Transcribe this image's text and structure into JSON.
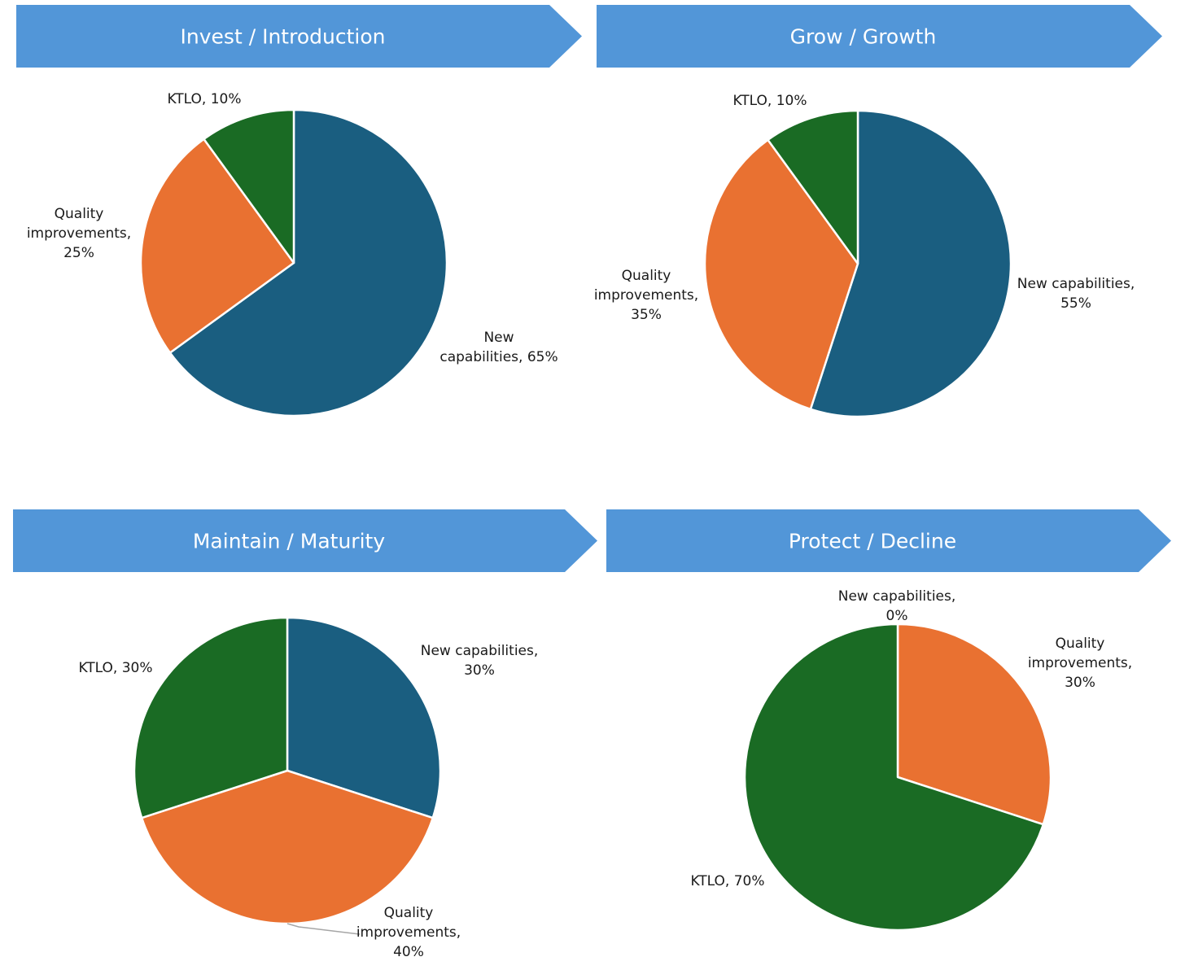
{
  "colors": {
    "banner": "#5296d8",
    "banner_text": "#ffffff",
    "new_capabilities": "#1a5e80",
    "quality_improvements": "#e97131",
    "ktlo": "#1a6b24",
    "slice_border": "#ffffff",
    "label_text": "#1a1a1a",
    "leader_line": "#a6a6a6"
  },
  "chart_data": [
    {
      "type": "pie",
      "title": "Invest / Introduction",
      "categories": [
        "New capabilities",
        "Quality improvements",
        "KTLO"
      ],
      "values": [
        65,
        25,
        10
      ],
      "unit": "%",
      "labels": [
        {
          "category": "New capabilities",
          "lines": [
            "New",
            "capabilities, 65%"
          ]
        },
        {
          "category": "Quality improvements",
          "lines": [
            "Quality",
            "improvements,",
            "25%"
          ]
        },
        {
          "category": "KTLO",
          "lines": [
            "KTLO, 10%"
          ]
        }
      ]
    },
    {
      "type": "pie",
      "title": "Grow / Growth",
      "categories": [
        "New capabilities",
        "Quality improvements",
        "KTLO"
      ],
      "values": [
        55,
        35,
        10
      ],
      "unit": "%",
      "labels": [
        {
          "category": "New capabilities",
          "lines": [
            "New capabilities,",
            "55%"
          ]
        },
        {
          "category": "Quality improvements",
          "lines": [
            "Quality",
            "improvements,",
            "35%"
          ]
        },
        {
          "category": "KTLO",
          "lines": [
            "KTLO, 10%"
          ]
        }
      ]
    },
    {
      "type": "pie",
      "title": "Maintain / Maturity",
      "categories": [
        "New capabilities",
        "Quality improvements",
        "KTLO"
      ],
      "values": [
        30,
        40,
        30
      ],
      "unit": "%",
      "labels": [
        {
          "category": "New capabilities",
          "lines": [
            "New capabilities,",
            "30%"
          ]
        },
        {
          "category": "Quality improvements",
          "lines": [
            "Quality",
            "improvements,",
            "40%"
          ]
        },
        {
          "category": "KTLO",
          "lines": [
            "KTLO, 30%"
          ]
        }
      ]
    },
    {
      "type": "pie",
      "title": "Protect / Decline",
      "categories": [
        "New capabilities",
        "Quality improvements",
        "KTLO"
      ],
      "values": [
        0,
        30,
        70
      ],
      "unit": "%",
      "labels": [
        {
          "category": "New capabilities",
          "lines": [
            "New capabilities,",
            "0%"
          ]
        },
        {
          "category": "Quality improvements",
          "lines": [
            "Quality",
            "improvements,",
            "30%"
          ]
        },
        {
          "category": "KTLO",
          "lines": [
            "KTLO, 70%"
          ]
        }
      ]
    }
  ]
}
